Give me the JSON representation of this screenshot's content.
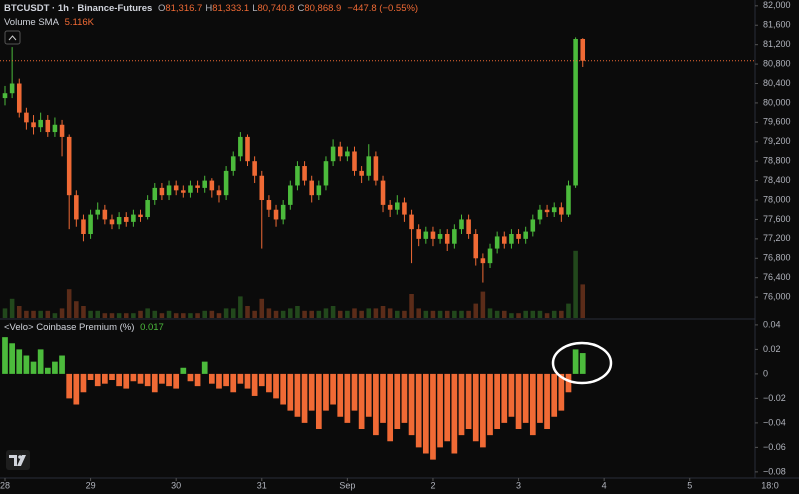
{
  "chart_data": [
    {
      "type": "candlestick",
      "title": "BTCUSDT · 1h · Binance-Futures",
      "ohlc_legend": [
        {
          "key": "O",
          "text": "81,316.7"
        },
        {
          "key": "H",
          "text": "81,333.1"
        },
        {
          "key": "L",
          "text": "80,740.8"
        },
        {
          "key": "C",
          "text": "80,868.9"
        }
      ],
      "change": "−447.8 (−0.55%)",
      "volume_label": "Volume SMA",
      "volume_sma": "5.116K",
      "colors": {
        "up": "#4cbb3c",
        "down": "#f06a35"
      },
      "xlim": [
        -1.4,
        210.3
      ],
      "xticks": [
        {
          "value": 0,
          "label": "28"
        },
        {
          "value": 24,
          "label": "29"
        },
        {
          "value": 48,
          "label": "30"
        },
        {
          "value": 72,
          "label": "31"
        },
        {
          "value": 96,
          "label": "Sep"
        },
        {
          "value": 120,
          "label": "2"
        },
        {
          "value": 144,
          "label": "3"
        },
        {
          "value": 168,
          "label": "4"
        },
        {
          "value": 192,
          "label": "5"
        }
      ],
      "corner_label": "18:0",
      "ylim": [
        75570,
        82120
      ],
      "yticks": [
        {
          "value": 82000,
          "label": "82,000"
        },
        {
          "value": 81600,
          "label": "81,600"
        },
        {
          "value": 81200,
          "label": "81,200"
        },
        {
          "value": 80800,
          "label": "80,800"
        },
        {
          "value": 80400,
          "label": "80,400"
        },
        {
          "value": 80000,
          "label": "80,000"
        },
        {
          "value": 79600,
          "label": "79,600"
        },
        {
          "value": 79200,
          "label": "79,200"
        },
        {
          "value": 78800,
          "label": "78,800"
        },
        {
          "value": 78400,
          "label": "78,400"
        },
        {
          "value": 78000,
          "label": "78,000"
        },
        {
          "value": 77600,
          "label": "77,600"
        },
        {
          "value": 77200,
          "label": "77,200"
        },
        {
          "value": 76800,
          "label": "76,800"
        },
        {
          "value": 76400,
          "label": "76,400"
        },
        {
          "value": 76000,
          "label": "76,000"
        }
      ],
      "x": [
        0,
        2,
        4,
        6,
        8,
        10,
        12,
        14,
        16,
        18,
        20,
        22,
        24,
        26,
        28,
        30,
        32,
        34,
        36,
        38,
        40,
        42,
        44,
        46,
        48,
        50,
        52,
        54,
        56,
        58,
        60,
        62,
        64,
        66,
        68,
        70,
        72,
        74,
        76,
        78,
        80,
        82,
        84,
        86,
        88,
        90,
        92,
        94,
        96,
        98,
        100,
        102,
        104,
        106,
        108,
        110,
        112,
        114,
        116,
        118,
        120,
        122,
        124,
        126,
        128,
        130,
        132,
        134,
        136,
        138,
        140,
        142,
        144,
        146,
        148,
        150,
        152,
        154,
        156,
        158,
        160,
        162
      ],
      "candles": [
        [
          80100,
          80350,
          79950,
          80200
        ],
        [
          80200,
          81150,
          80100,
          80400
        ],
        [
          80400,
          80500,
          79700,
          79800
        ],
        [
          79800,
          79900,
          79450,
          79600
        ],
        [
          79600,
          79750,
          79350,
          79500
        ],
        [
          79500,
          79800,
          79400,
          79650
        ],
        [
          79650,
          79750,
          79300,
          79400
        ],
        [
          79400,
          79700,
          79300,
          79550
        ],
        [
          79550,
          79650,
          78900,
          79300
        ],
        [
          79300,
          79350,
          77400,
          78100
        ],
        [
          78100,
          78200,
          77450,
          77600
        ],
        [
          77600,
          77700,
          77150,
          77300
        ],
        [
          77300,
          77800,
          77200,
          77700
        ],
        [
          77700,
          77950,
          77600,
          77800
        ],
        [
          77800,
          77900,
          77500,
          77600
        ],
        [
          77600,
          77700,
          77400,
          77500
        ],
        [
          77500,
          77750,
          77400,
          77650
        ],
        [
          77650,
          77750,
          77450,
          77550
        ],
        [
          77550,
          77800,
          77450,
          77700
        ],
        [
          77700,
          77800,
          77550,
          77650
        ],
        [
          77650,
          78100,
          77600,
          78000
        ],
        [
          78000,
          78350,
          77900,
          78250
        ],
        [
          78250,
          78350,
          78000,
          78100
        ],
        [
          78100,
          78400,
          78000,
          78300
        ],
        [
          78300,
          78400,
          78100,
          78200
        ],
        [
          78200,
          78300,
          78050,
          78150
        ],
        [
          78150,
          78400,
          78050,
          78300
        ],
        [
          78300,
          78400,
          78150,
          78250
        ],
        [
          78250,
          78500,
          78150,
          78400
        ],
        [
          78400,
          78450,
          78050,
          78200
        ],
        [
          78200,
          78300,
          77950,
          78100
        ],
        [
          78100,
          78700,
          78000,
          78600
        ],
        [
          78600,
          79000,
          78500,
          78900
        ],
        [
          78900,
          79400,
          78800,
          79300
        ],
        [
          79300,
          79350,
          78700,
          78800
        ],
        [
          78800,
          78900,
          78350,
          78500
        ],
        [
          78500,
          78600,
          77000,
          78000
        ],
        [
          78000,
          78100,
          77650,
          77800
        ],
        [
          77800,
          77900,
          77450,
          77600
        ],
        [
          77600,
          78000,
          77500,
          77900
        ],
        [
          77900,
          78400,
          77800,
          78300
        ],
        [
          78300,
          78800,
          78200,
          78700
        ],
        [
          78700,
          78800,
          78300,
          78400
        ],
        [
          78400,
          78500,
          77950,
          78100
        ],
        [
          78100,
          78400,
          78000,
          78300
        ],
        [
          78300,
          78900,
          78200,
          78800
        ],
        [
          78800,
          79250,
          78700,
          79100
        ],
        [
          79100,
          79200,
          78800,
          78900
        ],
        [
          78900,
          79100,
          78800,
          79000
        ],
        [
          79000,
          79100,
          78500,
          78600
        ],
        [
          78600,
          78700,
          78350,
          78500
        ],
        [
          78500,
          79150,
          78400,
          78900
        ],
        [
          78900,
          79000,
          78300,
          78400
        ],
        [
          78400,
          78500,
          77750,
          77900
        ],
        [
          77900,
          78000,
          77650,
          77800
        ],
        [
          77800,
          78100,
          77700,
          77950
        ],
        [
          77950,
          78050,
          77550,
          77700
        ],
        [
          77700,
          77800,
          76700,
          77400
        ],
        [
          77400,
          77500,
          77050,
          77200
        ],
        [
          77200,
          77450,
          77100,
          77350
        ],
        [
          77350,
          77450,
          77050,
          77200
        ],
        [
          77200,
          77400,
          77100,
          77300
        ],
        [
          77300,
          77400,
          76950,
          77100
        ],
        [
          77100,
          77500,
          77000,
          77400
        ],
        [
          77400,
          77700,
          77300,
          77600
        ],
        [
          77600,
          77700,
          77200,
          77300
        ],
        [
          77300,
          77400,
          76650,
          76800
        ],
        [
          76800,
          76900,
          76300,
          76700
        ],
        [
          76700,
          77100,
          76600,
          77000
        ],
        [
          77000,
          77350,
          76900,
          77250
        ],
        [
          77250,
          77350,
          77000,
          77100
        ],
        [
          77100,
          77400,
          77000,
          77300
        ],
        [
          77300,
          77400,
          77100,
          77200
        ],
        [
          77200,
          77450,
          77100,
          77350
        ],
        [
          77350,
          77700,
          77250,
          77600
        ],
        [
          77600,
          77900,
          77500,
          77800
        ],
        [
          77800,
          77900,
          77650,
          77750
        ],
        [
          77750,
          77950,
          77650,
          77850
        ],
        [
          77850,
          77950,
          77550,
          77700
        ],
        [
          77700,
          78400,
          77650,
          78300
        ],
        [
          78300,
          81350,
          78250,
          81316.7
        ],
        [
          81316.7,
          81333.1,
          80740.8,
          80868.9
        ]
      ],
      "volume": [
        4,
        8,
        5,
        3,
        3,
        3,
        3,
        2,
        4,
        12,
        7,
        5,
        3,
        3,
        2,
        2,
        2,
        2,
        2,
        3,
        4,
        3,
        2,
        3,
        2,
        2,
        2,
        2,
        3,
        3,
        2,
        4,
        4,
        9,
        5,
        3,
        8,
        4,
        3,
        3,
        4,
        5,
        3,
        3,
        3,
        4,
        5,
        3,
        3,
        4,
        3,
        4,
        4,
        5,
        4,
        3,
        3,
        10,
        4,
        3,
        3,
        3,
        3,
        3,
        3,
        3,
        6,
        11,
        4,
        3,
        3,
        2,
        2,
        3,
        3,
        3,
        2,
        3,
        3,
        6,
        28,
        14
      ]
    },
    {
      "type": "bar",
      "title": "<Velo> Coinbase Premium (%)",
      "last_value": "0.017",
      "colors": {
        "up": "#4cbb3c",
        "down": "#f06a35"
      },
      "ylim": [
        -0.085,
        0.044
      ],
      "yticks": [
        0.04,
        0.02,
        0,
        {
          "value": -0.02,
          "label": "−0.02"
        },
        {
          "value": -0.04,
          "label": "−0.04"
        },
        {
          "value": -0.06,
          "label": "−0.06"
        },
        {
          "value": -0.08,
          "label": "−0.08"
        }
      ],
      "values": [
        0.03,
        0.025,
        0.02,
        0.015,
        0.01,
        0.02,
        0.005,
        0.01,
        0.015,
        -0.02,
        -0.025,
        -0.015,
        -0.005,
        -0.01,
        -0.008,
        -0.005,
        -0.01,
        -0.012,
        -0.006,
        -0.008,
        -0.01,
        -0.015,
        -0.008,
        -0.01,
        -0.012,
        0.005,
        -0.006,
        -0.01,
        0.01,
        -0.008,
        -0.012,
        -0.01,
        -0.015,
        -0.008,
        -0.012,
        -0.018,
        -0.01,
        -0.015,
        -0.02,
        -0.025,
        -0.03,
        -0.035,
        -0.04,
        -0.03,
        -0.045,
        -0.03,
        -0.025,
        -0.035,
        -0.04,
        -0.03,
        -0.045,
        -0.035,
        -0.05,
        -0.04,
        -0.055,
        -0.045,
        -0.04,
        -0.05,
        -0.06,
        -0.065,
        -0.07,
        -0.06,
        -0.055,
        -0.065,
        -0.05,
        -0.045,
        -0.055,
        -0.06,
        -0.05,
        -0.045,
        -0.04,
        -0.035,
        -0.045,
        -0.04,
        -0.05,
        -0.04,
        -0.045,
        -0.035,
        -0.03,
        -0.015,
        0.02,
        0.017
      ]
    }
  ]
}
